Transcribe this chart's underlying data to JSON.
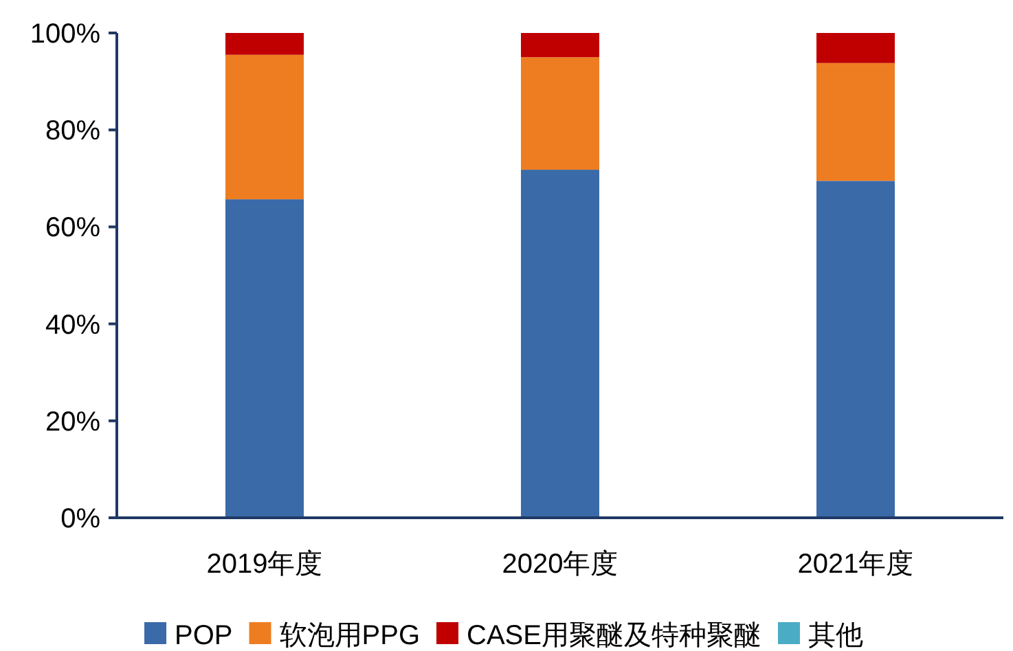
{
  "chart_data": {
    "type": "bar",
    "stacked": true,
    "categories": [
      "2019年度",
      "2020年度",
      "2021年度"
    ],
    "series": [
      {
        "name": "POP",
        "color": "#3a6aa8",
        "values": [
          65.7,
          71.8,
          69.5
        ]
      },
      {
        "name": "软泡用PPG",
        "color": "#ee7d22",
        "values": [
          29.8,
          23.2,
          24.3
        ]
      },
      {
        "name": "CASE用聚醚及特种聚醚",
        "color": "#c00000",
        "values": [
          4.5,
          5.0,
          6.2
        ]
      },
      {
        "name": "其他",
        "color": "#4bacc6",
        "values": [
          0,
          0,
          0
        ]
      }
    ],
    "ylim": [
      0,
      100
    ],
    "yticks": [
      {
        "value": 0,
        "label": "0%"
      },
      {
        "value": 20,
        "label": "20%"
      },
      {
        "value": 40,
        "label": "40%"
      },
      {
        "value": 60,
        "label": "60%"
      },
      {
        "value": 80,
        "label": "80%"
      },
      {
        "value": 100,
        "label": "100%"
      }
    ],
    "grid": false,
    "legend": "bottom"
  }
}
